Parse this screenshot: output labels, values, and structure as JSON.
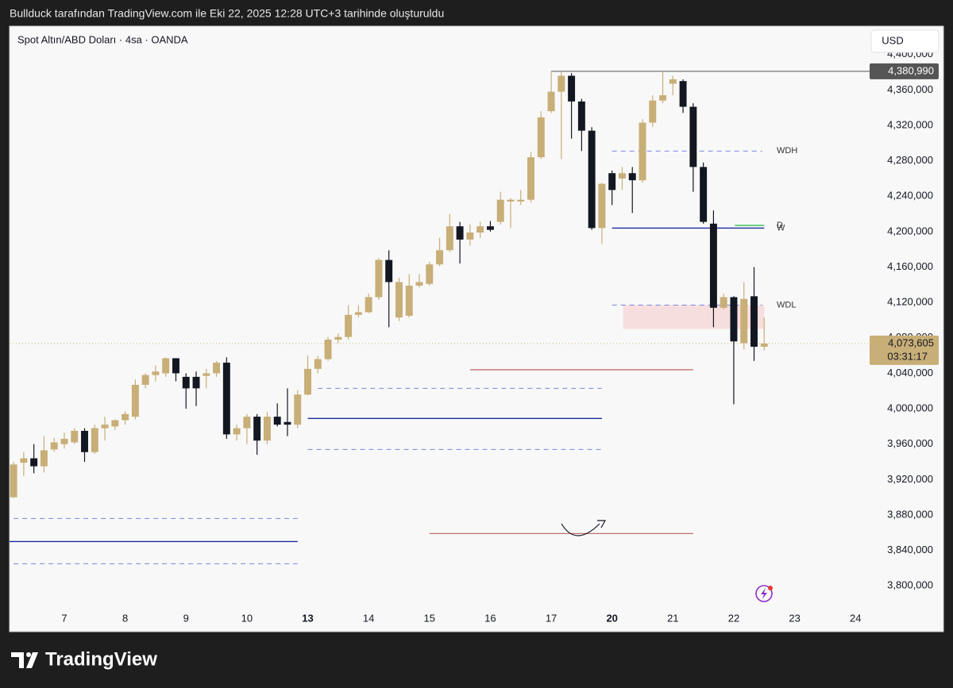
{
  "header": {
    "caption": "Bullduck tarafından TradingView.com ile Eki 22, 2025 12:28 UTC+3 tarihinde oluşturuldu"
  },
  "footer": {
    "brand": "TradingView"
  },
  "chart_data": {
    "type": "candlestick",
    "title": "Spot Altın/ABD Doları · 4sa · OANDA",
    "currency": "USD",
    "x": [
      0,
      1,
      2,
      3,
      4,
      5,
      6,
      7,
      8,
      9,
      10,
      11,
      12,
      13,
      14,
      15,
      16,
      17,
      18,
      19,
      20,
      21,
      22,
      23,
      24,
      25,
      26,
      27,
      28,
      29,
      30,
      31,
      32,
      33,
      34,
      35,
      36,
      37,
      38,
      39,
      40,
      41,
      42,
      43,
      44,
      45,
      46,
      47,
      48,
      49,
      50,
      51,
      52,
      53,
      54,
      55,
      56,
      57,
      58,
      59,
      60,
      61,
      62,
      63,
      64,
      65,
      66,
      67,
      68,
      69,
      70,
      71,
      72,
      73,
      74
    ],
    "open": [
      3900000,
      3939000,
      3944000,
      3935000,
      3954000,
      3960000,
      3962000,
      3975000,
      3951000,
      3978000,
      3980000,
      3987000,
      3991000,
      4027000,
      4038000,
      4040000,
      4057000,
      4036000,
      4036000,
      4037000,
      4040000,
      4052000,
      3971000,
      3978000,
      3991000,
      3964000,
      3991000,
      3985000,
      3982000,
      4016000,
      4045000,
      4056000,
      4078000,
      4081000,
      4106000,
      4109000,
      4126000,
      4168000,
      4103000,
      4105000,
      4139000,
      4141000,
      4163000,
      4179000,
      4206000,
      4191000,
      4199000,
      4206000,
      4211000,
      4234000,
      4234000,
      4236000,
      4284000,
      4336000,
      4358000,
      4376000,
      4347000,
      4314000,
      4204000,
      4266000,
      4260000,
      4266000,
      4258000,
      4323000,
      4348000,
      4367000,
      4370000,
      4341000,
      4273000,
      4209000,
      4114000,
      4126000,
      4074000,
      4127000,
      4070000
    ],
    "high": [
      3940000,
      3951000,
      3960000,
      3969000,
      3967000,
      3973000,
      3978000,
      3978000,
      3982000,
      3991000,
      3988000,
      3997000,
      4033000,
      4040000,
      4049000,
      4058000,
      4057000,
      4040000,
      4042000,
      4045000,
      4054000,
      4058000,
      3982000,
      3994000,
      3994000,
      3996000,
      4006000,
      4023000,
      4021000,
      4060000,
      4060000,
      4081000,
      4085000,
      4117000,
      4117000,
      4130000,
      4170000,
      4179000,
      4148000,
      4152000,
      4152000,
      4166000,
      4193000,
      4220000,
      4211000,
      4208000,
      4211000,
      4212000,
      4245000,
      4238000,
      4247000,
      4290000,
      4336000,
      4380990,
      4381000,
      4379000,
      4350000,
      4318000,
      4255000,
      4269000,
      4273000,
      4273000,
      4327000,
      4354000,
      4381000,
      4376000,
      4372000,
      4345000,
      4278000,
      4224000,
      4130000,
      4127000,
      4143000,
      4160000,
      4103000
    ],
    "low": [
      3899000,
      3924000,
      3927000,
      3928000,
      3951000,
      3955000,
      3960000,
      3940000,
      3949000,
      3964000,
      3976000,
      3982000,
      3988000,
      4023000,
      4031000,
      4036000,
      4031000,
      4000000,
      4003000,
      4023000,
      4036000,
      3966000,
      3964000,
      3960000,
      3948000,
      3960000,
      3980000,
      3969000,
      3978000,
      4015000,
      4040000,
      4054000,
      4074000,
      4078000,
      4103000,
      4108000,
      4123000,
      4092000,
      4099000,
      4103000,
      4137000,
      4139000,
      4161000,
      4177000,
      4164000,
      4184000,
      4193000,
      4200000,
      4208000,
      4204000,
      4230000,
      4233000,
      4282000,
      4334000,
      4282000,
      4305000,
      4291000,
      4202000,
      4186000,
      4230000,
      4247000,
      4221000,
      4255000,
      4318000,
      4345000,
      4354000,
      4334000,
      4245000,
      4209000,
      4092000,
      4112000,
      4005000,
      4067000,
      4054000,
      4066000
    ],
    "close": [
      3937000,
      3944000,
      3935000,
      3953000,
      3962000,
      3966000,
      3975000,
      3951000,
      3978000,
      3982000,
      3987000,
      3994000,
      4027000,
      4038000,
      4042000,
      4057000,
      4040000,
      4023000,
      4023000,
      4040000,
      4052000,
      3971000,
      3978000,
      3991000,
      3964000,
      3991000,
      3982000,
      3982000,
      4016000,
      4045000,
      4056000,
      4078000,
      4081000,
      4106000,
      4109000,
      4126000,
      4168000,
      4143000,
      4143000,
      4139000,
      4143000,
      4163000,
      4179000,
      4206000,
      4191000,
      4199000,
      4206000,
      4202000,
      4236000,
      4236000,
      4236000,
      4284000,
      4329000,
      4358000,
      4376000,
      4347000,
      4314000,
      4204000,
      4254000,
      4247000,
      4266000,
      4258000,
      4323000,
      4348000,
      4354000,
      4372000,
      4341000,
      4273000,
      4211000,
      4114000,
      4126000,
      4076000,
      4124000,
      4070000,
      4073605
    ],
    "up_color": "#c8ae77",
    "down_color": "#131722",
    "xlim": [
      -0.4,
      84
    ],
    "xticks": [
      {
        "value": 5,
        "label": "7"
      },
      {
        "value": 11,
        "label": "8"
      },
      {
        "value": 17,
        "label": "9"
      },
      {
        "value": 23,
        "label": "10"
      },
      {
        "value": 29,
        "label": "13",
        "bold": true
      },
      {
        "value": 35,
        "label": "14"
      },
      {
        "value": 41,
        "label": "15"
      },
      {
        "value": 47,
        "label": "16"
      },
      {
        "value": 53,
        "label": "17"
      },
      {
        "value": 59,
        "label": "20",
        "bold": true
      },
      {
        "value": 65,
        "label": "21"
      },
      {
        "value": 71,
        "label": "22"
      },
      {
        "value": 77,
        "label": "23"
      },
      {
        "value": 83,
        "label": "24"
      }
    ],
    "ylim": [
      3776000,
      4432000
    ],
    "yticks": [
      {
        "value": 3800000,
        "label": "3,800,000"
      },
      {
        "value": 3840000,
        "label": "3,840,000"
      },
      {
        "value": 3880000,
        "label": "3,880,000"
      },
      {
        "value": 3920000,
        "label": "3,920,000"
      },
      {
        "value": 3960000,
        "label": "3,960,000"
      },
      {
        "value": 4000000,
        "label": "4,000,000"
      },
      {
        "value": 4040000,
        "label": "4,040,000"
      },
      {
        "value": 4080000,
        "label": "4,080,000"
      },
      {
        "value": 4120000,
        "label": "4,120,000"
      },
      {
        "value": 4160000,
        "label": "4,160,000"
      },
      {
        "value": 4200000,
        "label": "4,200,000"
      },
      {
        "value": 4240000,
        "label": "4,240,000"
      },
      {
        "value": 4280000,
        "label": "4,280,000"
      },
      {
        "value": 4320000,
        "label": "4,320,000"
      },
      {
        "value": 4360000,
        "label": "4,360,000"
      },
      {
        "value": 4400000,
        "label": "4,400,000"
      }
    ],
    "grid": false,
    "levels": [
      {
        "value": 4291000,
        "x0": 59,
        "x1": 73.8,
        "color": "#7b83e0",
        "dashed": true,
        "label": "WDH"
      },
      {
        "value": 4207000,
        "x0": 71.1,
        "x1": 74,
        "color": "#2fbf4f",
        "dashed": false,
        "label": "D"
      },
      {
        "value": 4204000,
        "x0": 59,
        "x1": 74,
        "color": "#1a2a9c",
        "dashed": false,
        "label": "W"
      },
      {
        "value": 4117000,
        "x0": 59,
        "x1": 73.8,
        "color": "#7b83e0",
        "dashed": true,
        "label": "WDL"
      },
      {
        "value": 4044000,
        "x0": 45,
        "x1": 67,
        "color": "#c0706e",
        "dashed": false
      },
      {
        "value": 4023000,
        "x0": 30,
        "x1": 58,
        "color": "#7b83e0",
        "dashed": true
      },
      {
        "value": 3989000,
        "x0": 29,
        "x1": 58,
        "color": "#1a2a9c",
        "dashed": false
      },
      {
        "value": 3954000,
        "x0": 29,
        "x1": 58,
        "color": "#7b83e0",
        "dashed": true
      },
      {
        "value": 3876000,
        "x0": 0,
        "x1": 28,
        "color": "#7b83e0",
        "dashed": true
      },
      {
        "value": 3850000,
        "x0": -0.4,
        "x1": 28,
        "color": "#1a2a9c",
        "dashed": false
      },
      {
        "value": 3825000,
        "x0": 0,
        "x1": 28,
        "color": "#7b83e0",
        "dashed": true
      },
      {
        "value": 3859000,
        "x0": 41,
        "x1": 67,
        "color": "#c0706e",
        "dashed": false
      }
    ],
    "zone": {
      "y0": 4090000,
      "y1": 4117000,
      "x0": 60.1,
      "x1": 74,
      "color": "#f7dede"
    },
    "high_line": {
      "value": 4380990,
      "label": "4,380,990",
      "x0": 53,
      "color": "#555555"
    },
    "last_price": {
      "value": 4073605,
      "label": "4,073,605",
      "countdown": "03:31:17",
      "color": "#c8ae77"
    }
  }
}
